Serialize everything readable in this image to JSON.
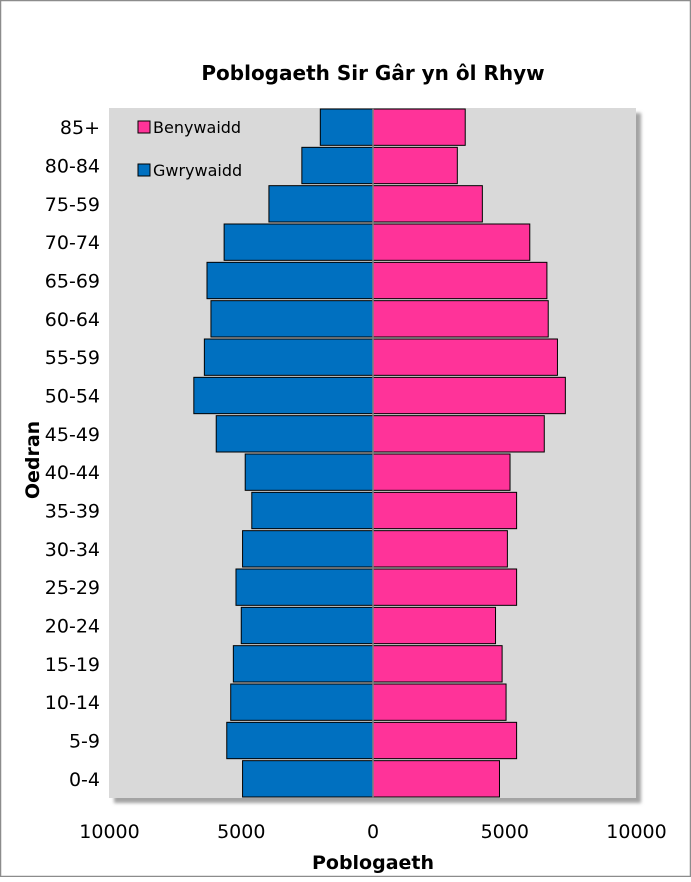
{
  "chart_data": {
    "type": "bar",
    "orientation": "horizontal",
    "layout": "population-pyramid",
    "title": "Poblogaeth Sir Gâr yn ôl Rhyw",
    "xlabel": "Poblogaeth",
    "ylabel": "Oedran",
    "xlim": [
      -10000,
      10000
    ],
    "xticks": [
      -10000,
      -5000,
      0,
      5000,
      10000
    ],
    "xtick_labels": [
      "10000",
      "5000",
      "0",
      "5000",
      "10000"
    ],
    "categories": [
      "0-4",
      "5-9",
      "10-14",
      "15-19",
      "20-24",
      "25-29",
      "30-34",
      "35-39",
      "40-44",
      "45-49",
      "50-54",
      "55-59",
      "60-64",
      "65-69",
      "70-74",
      "75-59",
      "80-84",
      "85+"
    ],
    "series": [
      {
        "name": "Gwrywaidd",
        "color": "#0070C0",
        "side": "left",
        "values": [
          4950,
          5550,
          5400,
          5300,
          5000,
          5200,
          4950,
          4600,
          4850,
          5950,
          6800,
          6400,
          6150,
          6300,
          5650,
          3950,
          2700,
          2000
        ]
      },
      {
        "name": "Benywaidd",
        "color": "#FF3399",
        "side": "right",
        "values": [
          4800,
          5450,
          5050,
          4900,
          4650,
          5450,
          5100,
          5450,
          5200,
          6500,
          7300,
          7000,
          6650,
          6600,
          5950,
          4150,
          3200,
          3500
        ]
      }
    ],
    "legend": {
      "placement": "top-left",
      "order": [
        "Benywaidd",
        "Gwrywaidd"
      ]
    },
    "plot_background": "#D9D9D9",
    "grid": false
  }
}
